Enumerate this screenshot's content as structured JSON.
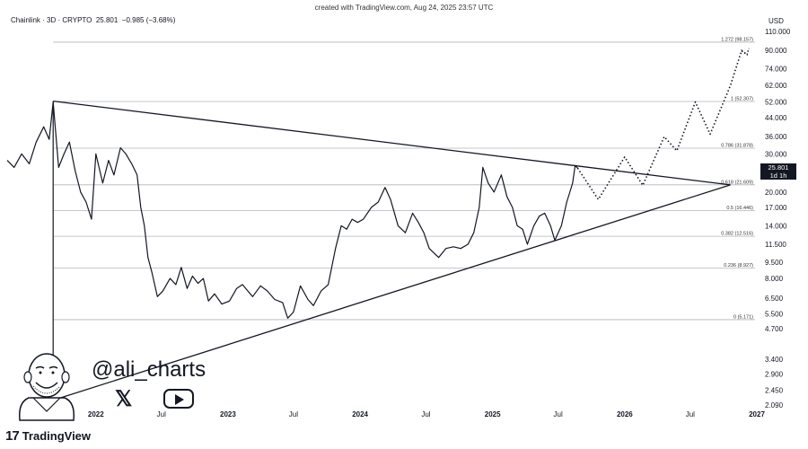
{
  "header": {
    "credit": "created with TradingView.com, Aug 24, 2025 23:57 UTC",
    "symbol": "Chainlink · 3D · CRYPTO",
    "last": "25.801",
    "change": "−0.985 (−3.68%)"
  },
  "price_badge": {
    "value": "25.801",
    "interval": "1d 1h"
  },
  "branding": {
    "handle": "@ali_charts",
    "watermark": "TradingView",
    "watermark_logo": "17"
  },
  "icons": {
    "avatar": "cartoon-avatar-icon",
    "x": "x-logo-icon",
    "youtube": "youtube-play-icon",
    "tradingview": "tradingview-logo-icon"
  },
  "colors": {
    "line": "#131722",
    "grid": "#b2b5be",
    "badge": "#131722"
  },
  "chart_data": {
    "type": "line",
    "title": "",
    "currency": "USD",
    "scale": "log",
    "ylim": [
      2.09,
      110.0
    ],
    "xlim": [
      "2021-05-01",
      "2027-01-01"
    ],
    "y_ticks": [
      "110.000",
      "90.000",
      "74.000",
      "62.000",
      "52.000",
      "44.000",
      "36.000",
      "30.000",
      "25.000",
      "20.000",
      "17.000",
      "14.000",
      "11.500",
      "9.500",
      "8.000",
      "6.500",
      "5.500",
      "4.700",
      "3.400",
      "2.900",
      "2.450",
      "2.090"
    ],
    "x_ticks": [
      {
        "label": "2022",
        "date": "2022-01-01",
        "bold": true
      },
      {
        "label": "Jul",
        "date": "2022-07-01",
        "bold": false
      },
      {
        "label": "2023",
        "date": "2023-01-01",
        "bold": true
      },
      {
        "label": "Jul",
        "date": "2023-07-01",
        "bold": false
      },
      {
        "label": "2024",
        "date": "2024-01-01",
        "bold": true
      },
      {
        "label": "Jul",
        "date": "2024-07-01",
        "bold": false
      },
      {
        "label": "2025",
        "date": "2025-01-01",
        "bold": true
      },
      {
        "label": "Jul",
        "date": "2025-07-01",
        "bold": false
      },
      {
        "label": "2026",
        "date": "2026-01-01",
        "bold": true
      },
      {
        "label": "Jul",
        "date": "2026-07-01",
        "bold": false
      },
      {
        "label": "2027",
        "date": "2027-01-01",
        "bold": true
      }
    ],
    "fib_levels": [
      {
        "ratio": "1.272",
        "price": 98.157,
        "label": "1.272 (98.157)"
      },
      {
        "ratio": "1",
        "price": 52.307,
        "label": "1 (52.307)"
      },
      {
        "ratio": "0.786",
        "price": 31.878,
        "label": "0.786 (31.878)"
      },
      {
        "ratio": "0.618",
        "price": 21.609,
        "label": "0.618 (21.609)"
      },
      {
        "ratio": "0.5",
        "price": 16.446,
        "label": "0.5 (16.446)"
      },
      {
        "ratio": "0.382",
        "price": 12.516,
        "label": "0.382 (12.516)"
      },
      {
        "ratio": "0.236",
        "price": 8.927,
        "label": "0.236 (8.927)"
      },
      {
        "ratio": "0",
        "price": 5.171,
        "label": "0 (5.171)"
      }
    ],
    "series": [
      {
        "values": [
          [
            "2021-05-01",
            28
          ],
          [
            "2021-05-20",
            26
          ],
          [
            "2021-06-10",
            30
          ],
          [
            "2021-07-01",
            27
          ],
          [
            "2021-07-20",
            34
          ],
          [
            "2021-08-10",
            40
          ],
          [
            "2021-08-25",
            35
          ],
          [
            "2021-09-05",
            52
          ],
          [
            "2021-09-20",
            26
          ],
          [
            "2021-10-05",
            30
          ],
          [
            "2021-10-20",
            34
          ],
          [
            "2021-11-05",
            25
          ],
          [
            "2021-11-20",
            20
          ],
          [
            "2021-12-05",
            18
          ],
          [
            "2021-12-20",
            15
          ],
          [
            "2022-01-01",
            30
          ],
          [
            "2022-01-20",
            22
          ],
          [
            "2022-02-05",
            28
          ],
          [
            "2022-02-20",
            24
          ],
          [
            "2022-03-10",
            32
          ],
          [
            "2022-03-25",
            30
          ],
          [
            "2022-04-10",
            27
          ],
          [
            "2022-04-25",
            24
          ],
          [
            "2022-05-05",
            17
          ],
          [
            "2022-05-15",
            14
          ],
          [
            "2022-05-25",
            10
          ],
          [
            "2022-06-05",
            8.5
          ],
          [
            "2022-06-20",
            6.6
          ],
          [
            "2022-07-05",
            7.0
          ],
          [
            "2022-07-25",
            8.0
          ],
          [
            "2022-08-10",
            7.5
          ],
          [
            "2022-08-25",
            9.0
          ],
          [
            "2022-09-10",
            7.2
          ],
          [
            "2022-09-25",
            8.2
          ],
          [
            "2022-10-10",
            7.6
          ],
          [
            "2022-10-25",
            8.0
          ],
          [
            "2022-11-08",
            6.3
          ],
          [
            "2022-11-25",
            6.8
          ],
          [
            "2022-12-15",
            6.1
          ],
          [
            "2023-01-05",
            6.3
          ],
          [
            "2023-01-25",
            7.2
          ],
          [
            "2023-02-10",
            7.5
          ],
          [
            "2023-02-25",
            7.0
          ],
          [
            "2023-03-10",
            6.6
          ],
          [
            "2023-04-01",
            7.4
          ],
          [
            "2023-04-20",
            7.0
          ],
          [
            "2023-05-10",
            6.4
          ],
          [
            "2023-06-01",
            6.2
          ],
          [
            "2023-06-15",
            5.25
          ],
          [
            "2023-07-01",
            5.6
          ],
          [
            "2023-07-20",
            7.4
          ],
          [
            "2023-08-10",
            6.4
          ],
          [
            "2023-08-25",
            6.0
          ],
          [
            "2023-09-15",
            7.0
          ],
          [
            "2023-10-05",
            7.5
          ],
          [
            "2023-10-25",
            11
          ],
          [
            "2023-11-10",
            14
          ],
          [
            "2023-11-25",
            13.5
          ],
          [
            "2023-12-10",
            15
          ],
          [
            "2023-12-25",
            14.5
          ],
          [
            "2024-01-10",
            15
          ],
          [
            "2024-02-01",
            17
          ],
          [
            "2024-02-20",
            18
          ],
          [
            "2024-03-10",
            21
          ],
          [
            "2024-03-25",
            18.5
          ],
          [
            "2024-04-15",
            14
          ],
          [
            "2024-05-05",
            13
          ],
          [
            "2024-05-25",
            16
          ],
          [
            "2024-06-10",
            14.5
          ],
          [
            "2024-06-25",
            13.0
          ],
          [
            "2024-07-10",
            11
          ],
          [
            "2024-08-05",
            10
          ],
          [
            "2024-08-25",
            11
          ],
          [
            "2024-09-15",
            11.2
          ],
          [
            "2024-10-05",
            11.0
          ],
          [
            "2024-10-25",
            11.5
          ],
          [
            "2024-11-10",
            13
          ],
          [
            "2024-11-25",
            17
          ],
          [
            "2024-12-05",
            26
          ],
          [
            "2024-12-20",
            22
          ],
          [
            "2025-01-05",
            20
          ],
          [
            "2025-01-25",
            24
          ],
          [
            "2025-02-10",
            19
          ],
          [
            "2025-02-25",
            17
          ],
          [
            "2025-03-10",
            14
          ],
          [
            "2025-03-25",
            13.5
          ],
          [
            "2025-04-07",
            11.5
          ],
          [
            "2025-04-25",
            14
          ],
          [
            "2025-05-10",
            15.5
          ],
          [
            "2025-05-25",
            16
          ],
          [
            "2025-06-10",
            14
          ],
          [
            "2025-06-22",
            12
          ],
          [
            "2025-07-10",
            14
          ],
          [
            "2025-07-25",
            18
          ],
          [
            "2025-08-10",
            22
          ],
          [
            "2025-08-17",
            26.5
          ],
          [
            "2025-08-24",
            25.8
          ]
        ]
      },
      {
        "style": "dotted",
        "values": [
          [
            "2025-08-24",
            25.8
          ],
          [
            "2025-10-20",
            18.5
          ],
          [
            "2026-01-01",
            29
          ],
          [
            "2026-02-20",
            21.5
          ],
          [
            "2026-04-20",
            36
          ],
          [
            "2026-05-25",
            31
          ],
          [
            "2026-07-15",
            52
          ],
          [
            "2026-08-25",
            37
          ],
          [
            "2026-10-20",
            62
          ],
          [
            "2026-11-20",
            90
          ],
          [
            "2026-12-05",
            86
          ]
        ]
      }
    ],
    "trendlines": [
      {
        "from": [
          "2021-09-05",
          52.5
        ],
        "to": [
          "2026-10-20",
          21.6
        ]
      },
      {
        "from": [
          "2021-09-05",
          2.2
        ],
        "to": [
          "2026-10-20",
          21.6
        ]
      }
    ]
  }
}
